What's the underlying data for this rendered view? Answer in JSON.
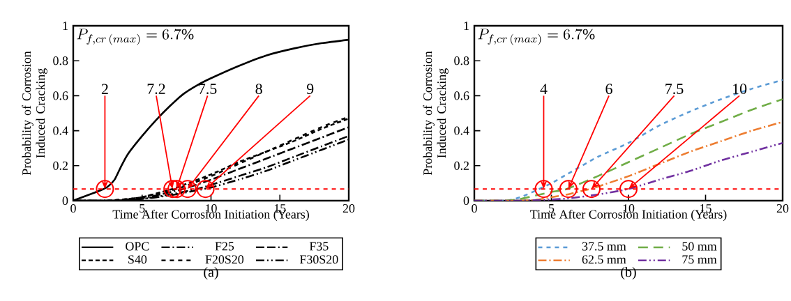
{
  "chart_data": [
    {
      "type": "line",
      "xlabel": "Time After Corrosion Initiation  (Years)",
      "ylabel": "Probability of Corrosion Induced Cracking",
      "xlim": [
        0,
        20
      ],
      "ylim": [
        0,
        1
      ],
      "xticks": [
        0,
        5,
        10,
        15,
        20
      ],
      "yticks": [
        0,
        0.2,
        0.4,
        0.6,
        0.8,
        1
      ],
      "legend": "bottom",
      "grid": false,
      "marker": "none",
      "ref_lines": [
        {
          "axis": "y",
          "value": 0.067,
          "color": "#ff0000",
          "line_style": "dashed"
        }
      ],
      "annotations": [
        "P_{f,cr\\,(max)} = 6.7\\%",
        "(a)",
        {
          "text": "2",
          "x": 2.3,
          "y": 0.067
        },
        {
          "text": "7.2",
          "x": 7.2,
          "y": 0.067
        },
        {
          "text": "7.5",
          "x": 7.5,
          "y": 0.067
        },
        {
          "text": "8",
          "x": 8.3,
          "y": 0.067
        },
        {
          "text": "9",
          "x": 9.6,
          "y": 0.067
        }
      ],
      "series": [
        {
          "name": "OPC",
          "color": "#000000",
          "line_style": "solid",
          "x": [
            0,
            1,
            2,
            2.5,
            3,
            3.5,
            4,
            5,
            6,
            7,
            8,
            9,
            10,
            12,
            14,
            16,
            18,
            20
          ],
          "values": [
            0,
            0.03,
            0.06,
            0.08,
            0.12,
            0.2,
            0.27,
            0.37,
            0.46,
            0.54,
            0.61,
            0.66,
            0.7,
            0.77,
            0.83,
            0.87,
            0.9,
            0.92
          ]
        },
        {
          "name": "F25",
          "color": "#000000",
          "line_style": "dashdot",
          "x": [
            0,
            3,
            5,
            7,
            9,
            10,
            12,
            14,
            16,
            18,
            20
          ],
          "values": [
            0,
            0,
            0.01,
            0.035,
            0.067,
            0.09,
            0.14,
            0.19,
            0.25,
            0.31,
            0.37
          ]
        },
        {
          "name": "F35",
          "color": "#000000",
          "line_style": "longdashdot",
          "x": [
            0,
            3,
            5,
            6,
            8,
            10,
            12,
            14,
            16,
            18,
            20
          ],
          "values": [
            0,
            0,
            0.015,
            0.03,
            0.067,
            0.12,
            0.18,
            0.24,
            0.3,
            0.36,
            0.42
          ]
        },
        {
          "name": "S40",
          "color": "#000000",
          "line_style": "dotted",
          "x": [
            0,
            2.5,
            4,
            5,
            6,
            7.2,
            8,
            10,
            12,
            14,
            16,
            18,
            20
          ],
          "values": [
            0,
            0,
            0.01,
            0.02,
            0.04,
            0.067,
            0.09,
            0.15,
            0.22,
            0.28,
            0.34,
            0.41,
            0.47
          ]
        },
        {
          "name": "F20S20",
          "color": "#000000",
          "line_style": "dashed",
          "x": [
            0,
            2.5,
            4,
            5,
            6,
            7.5,
            8,
            10,
            12,
            14,
            16,
            18,
            20
          ],
          "values": [
            0,
            0,
            0.01,
            0.02,
            0.04,
            0.067,
            0.08,
            0.14,
            0.21,
            0.28,
            0.35,
            0.42,
            0.48
          ]
        },
        {
          "name": "F30S20",
          "color": "#000000",
          "line_style": "dashdotdot",
          "x": [
            0,
            3,
            5,
            7,
            9.5,
            10,
            12,
            14,
            16,
            18,
            20
          ],
          "values": [
            0,
            0,
            0.01,
            0.03,
            0.067,
            0.075,
            0.12,
            0.17,
            0.23,
            0.29,
            0.35
          ]
        }
      ]
    },
    {
      "type": "line",
      "xlabel": "Time After Corrosion Initiation  (Years)",
      "ylabel": "Probability of Corrosion Induced Cracking",
      "xlim": [
        0,
        20
      ],
      "ylim": [
        0,
        1
      ],
      "xticks": [
        0,
        5,
        10,
        15,
        20
      ],
      "yticks": [
        0,
        0.2,
        0.4,
        0.6,
        0.8,
        1
      ],
      "legend": "bottom",
      "grid": false,
      "marker": "none",
      "ref_lines": [
        {
          "axis": "y",
          "value": 0.067,
          "color": "#ff0000",
          "line_style": "dashed"
        }
      ],
      "annotations": [
        "P_{f,cr\\,(max)} = 6.7\\%",
        "(b)",
        {
          "text": "4",
          "x": 4.5,
          "y": 0.067
        },
        {
          "text": "6",
          "x": 6.1,
          "y": 0.067
        },
        {
          "text": "7.5",
          "x": 7.6,
          "y": 0.067
        },
        {
          "text": "10",
          "x": 10,
          "y": 0.067
        }
      ],
      "series": [
        {
          "name": "37.5 mm",
          "color": "#5b9bd5",
          "line_style": "dashed",
          "x": [
            0,
            2,
            3,
            4,
            5,
            6,
            8,
            10,
            12,
            14,
            16,
            18,
            20
          ],
          "values": [
            0,
            0,
            0.02,
            0.058,
            0.1,
            0.15,
            0.25,
            0.33,
            0.43,
            0.51,
            0.58,
            0.64,
            0.69
          ]
        },
        {
          "name": "50 mm",
          "color": "#70ad47",
          "line_style": "longdashed",
          "x": [
            0,
            2,
            3,
            4,
            5,
            6,
            8,
            10,
            12,
            14,
            16,
            18,
            20
          ],
          "values": [
            0,
            0,
            0.01,
            0.03,
            0.05,
            0.067,
            0.14,
            0.22,
            0.3,
            0.38,
            0.45,
            0.52,
            0.58
          ]
        },
        {
          "name": "62.5 mm",
          "color": "#ed7d31",
          "line_style": "dashdot",
          "x": [
            0,
            3,
            4,
            5,
            6,
            7.5,
            8,
            10,
            12,
            14,
            16,
            18,
            20
          ],
          "values": [
            0,
            0,
            0.005,
            0.02,
            0.035,
            0.067,
            0.08,
            0.14,
            0.21,
            0.28,
            0.34,
            0.4,
            0.45
          ]
        },
        {
          "name": "75 mm",
          "color": "#7030a0",
          "line_style": "dashdotdot",
          "x": [
            0,
            3,
            4,
            6,
            8,
            10,
            12,
            14,
            16,
            18,
            20
          ],
          "values": [
            0,
            0,
            0.003,
            0.012,
            0.035,
            0.067,
            0.12,
            0.17,
            0.23,
            0.28,
            0.33
          ]
        }
      ]
    }
  ]
}
